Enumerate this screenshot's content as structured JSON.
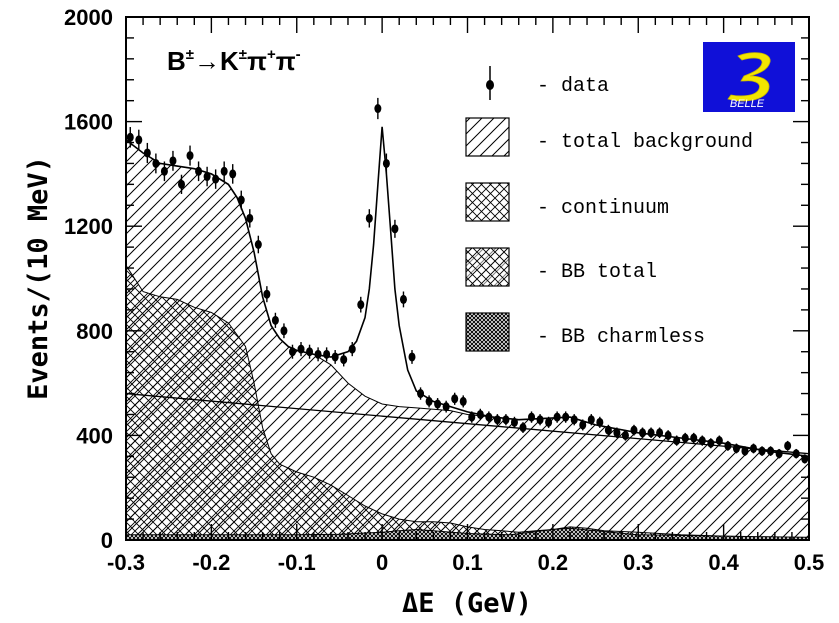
{
  "chart_data": {
    "type": "area",
    "title": "B±→K±π+π−",
    "title_parts": {
      "b": "B",
      "pm1": "±",
      "arrow": "→K",
      "pm2": "±",
      "pi1": "π",
      "plus": "+",
      "pi2": "π",
      "minus": "-"
    },
    "xlabel": "ΔE  (GeV)",
    "ylabel": "Events/(10 MeV)",
    "xlim": [
      -0.3,
      0.5
    ],
    "ylim": [
      0,
      2000
    ],
    "xticks": [
      -0.3,
      -0.2,
      -0.1,
      0,
      0.1,
      0.2,
      0.3,
      0.4,
      0.5
    ],
    "xtick_labels": [
      "-0.3",
      "-0.2",
      "-0.1",
      "0",
      "0.1",
      "0.2",
      "0.3",
      "0.4",
      "0.5"
    ],
    "yticks": [
      0,
      400,
      800,
      1200,
      1600,
      2000
    ],
    "ytick_labels": [
      "0",
      "400",
      "800",
      "1200",
      "1600",
      "2000"
    ],
    "grid": false,
    "legend_position": "top-right",
    "legend": [
      "- data",
      "- total background",
      "- continuum",
      "- BB total",
      "- BB charmless"
    ],
    "logo_label": "BELLE",
    "series": [
      {
        "name": "data",
        "style": "points",
        "x": [
          -0.295,
          -0.285,
          -0.275,
          -0.265,
          -0.255,
          -0.245,
          -0.235,
          -0.225,
          -0.215,
          -0.205,
          -0.195,
          -0.185,
          -0.175,
          -0.165,
          -0.155,
          -0.145,
          -0.135,
          -0.125,
          -0.115,
          -0.105,
          -0.095,
          -0.085,
          -0.075,
          -0.065,
          -0.055,
          -0.045,
          -0.035,
          -0.025,
          -0.015,
          -0.005,
          0.005,
          0.015,
          0.025,
          0.035,
          0.045,
          0.055,
          0.065,
          0.075,
          0.085,
          0.095,
          0.105,
          0.115,
          0.125,
          0.135,
          0.145,
          0.155,
          0.165,
          0.175,
          0.185,
          0.195,
          0.205,
          0.215,
          0.225,
          0.235,
          0.245,
          0.255,
          0.265,
          0.275,
          0.285,
          0.295,
          0.305,
          0.315,
          0.325,
          0.335,
          0.345,
          0.355,
          0.365,
          0.375,
          0.385,
          0.395,
          0.405,
          0.415,
          0.425,
          0.435,
          0.445,
          0.455,
          0.465,
          0.475,
          0.485,
          0.495
        ],
        "y": [
          1540,
          1530,
          1480,
          1440,
          1410,
          1450,
          1360,
          1470,
          1410,
          1390,
          1380,
          1410,
          1400,
          1300,
          1230,
          1130,
          940,
          840,
          800,
          720,
          730,
          720,
          710,
          710,
          700,
          690,
          730,
          900,
          1230,
          1650,
          1440,
          1190,
          920,
          700,
          560,
          530,
          520,
          510,
          540,
          530,
          470,
          480,
          470,
          460,
          460,
          450,
          430,
          470,
          460,
          450,
          470,
          470,
          460,
          440,
          460,
          450,
          420,
          410,
          400,
          420,
          410,
          410,
          410,
          400,
          380,
          390,
          390,
          380,
          370,
          380,
          360,
          350,
          340,
          350,
          340,
          340,
          330,
          360,
          330,
          310
        ]
      },
      {
        "name": "fit",
        "style": "line",
        "x": [
          -0.3,
          -0.28,
          -0.26,
          -0.24,
          -0.22,
          -0.2,
          -0.18,
          -0.17,
          -0.16,
          -0.15,
          -0.14,
          -0.13,
          -0.12,
          -0.11,
          -0.1,
          -0.08,
          -0.06,
          -0.04,
          -0.03,
          -0.02,
          -0.015,
          -0.01,
          -0.005,
          0,
          0.005,
          0.01,
          0.015,
          0.02,
          0.03,
          0.04,
          0.06,
          0.08,
          0.1,
          0.13,
          0.16,
          0.19,
          0.22,
          0.25,
          0.3,
          0.35,
          0.4,
          0.45,
          0.5
        ],
        "y": [
          1530,
          1480,
          1440,
          1430,
          1420,
          1400,
          1360,
          1310,
          1230,
          1100,
          930,
          820,
          770,
          740,
          725,
          710,
          700,
          720,
          760,
          850,
          960,
          1130,
          1360,
          1580,
          1400,
          1180,
          960,
          820,
          650,
          570,
          530,
          510,
          490,
          470,
          460,
          465,
          470,
          440,
          410,
          390,
          370,
          340,
          320
        ]
      },
      {
        "name": "total background",
        "style": "area",
        "pattern": "diagonal",
        "x": [
          -0.3,
          -0.28,
          -0.26,
          -0.24,
          -0.22,
          -0.2,
          -0.18,
          -0.17,
          -0.16,
          -0.15,
          -0.14,
          -0.13,
          -0.12,
          -0.11,
          -0.1,
          -0.08,
          -0.06,
          -0.04,
          -0.02,
          0,
          0.02,
          0.04,
          0.06,
          0.08,
          0.1,
          0.13,
          0.16,
          0.19,
          0.22,
          0.25,
          0.3,
          0.35,
          0.4,
          0.45,
          0.5
        ],
        "y": [
          1530,
          1480,
          1440,
          1430,
          1420,
          1400,
          1360,
          1310,
          1230,
          1100,
          930,
          820,
          770,
          740,
          725,
          710,
          670,
          600,
          550,
          520,
          510,
          505,
          500,
          495,
          480,
          470,
          460,
          465,
          470,
          440,
          410,
          390,
          370,
          340,
          320
        ]
      },
      {
        "name": "continuum",
        "style": "line",
        "x": [
          -0.3,
          0.5
        ],
        "y": [
          560,
          330
        ]
      },
      {
        "name": "BB total",
        "style": "area",
        "pattern": "crosshatch",
        "x": [
          -0.3,
          -0.28,
          -0.26,
          -0.24,
          -0.22,
          -0.2,
          -0.18,
          -0.16,
          -0.15,
          -0.14,
          -0.13,
          -0.12,
          -0.1,
          -0.08,
          -0.06,
          -0.04,
          -0.02,
          0,
          0.02,
          0.04,
          0.06,
          0.08,
          0.1,
          0.12,
          0.14,
          0.16,
          0.18,
          0.2,
          0.22,
          0.24,
          0.26,
          0.3,
          0.35,
          0.4,
          0.45,
          0.5
        ],
        "y": [
          1050,
          950,
          930,
          920,
          890,
          870,
          830,
          740,
          600,
          430,
          330,
          290,
          260,
          240,
          210,
          170,
          130,
          100,
          80,
          70,
          70,
          65,
          50,
          40,
          35,
          30,
          35,
          40,
          50,
          45,
          35,
          30,
          20,
          15,
          10,
          10
        ]
      },
      {
        "name": "BB charmless",
        "style": "area",
        "pattern": "dense",
        "x": [
          -0.3,
          -0.2,
          -0.1,
          -0.05,
          0,
          0.02,
          0.04,
          0.06,
          0.1,
          0.15,
          0.2,
          0.22,
          0.25,
          0.3,
          0.4,
          0.5
        ],
        "y": [
          20,
          20,
          20,
          22,
          30,
          35,
          40,
          35,
          25,
          20,
          40,
          45,
          35,
          20,
          15,
          10
        ]
      }
    ]
  }
}
